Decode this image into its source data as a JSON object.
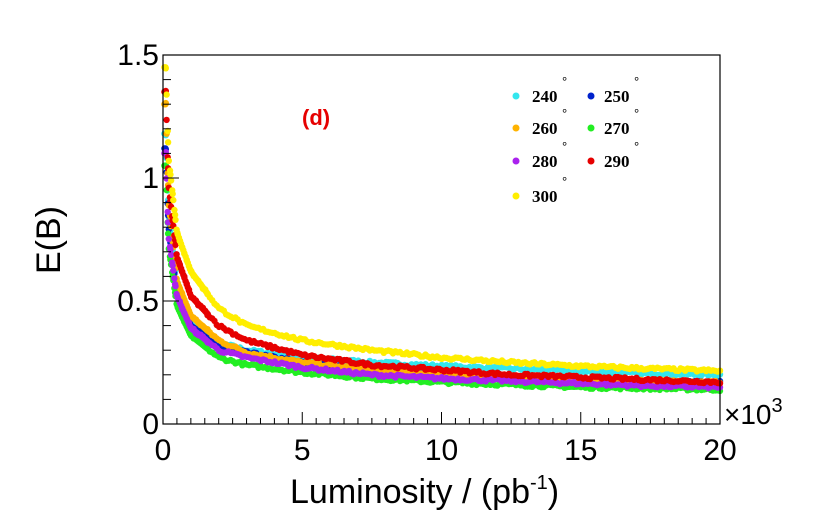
{
  "chart_data": {
    "type": "scatter",
    "title": "",
    "xlabel_main": "Luminosity / (pb",
    "xlabel_sup": "-1",
    "xlabel_end": ")",
    "ylabel": "E(B)",
    "x_multiplier": "×10",
    "x_multiplier_exp": "3",
    "xlim": [
      0,
      20
    ],
    "ylim": [
      0,
      1.5
    ],
    "x_ticks": [
      0,
      5,
      10,
      15,
      20
    ],
    "x_tick_labels": [
      "0",
      "5",
      "10",
      "15",
      "20"
    ],
    "y_ticks": [
      0,
      0.5,
      1,
      1.5
    ],
    "y_tick_labels": [
      "0",
      "0.5",
      "1",
      "1.5"
    ],
    "annotation": "(d)",
    "annotation_color": "#e60000",
    "degree_mark": "°",
    "legend_position": "top-right",
    "series": [
      {
        "name": "240",
        "color": "#33e6ee",
        "values": [
          [
            0.1,
            1.18
          ],
          [
            0.2,
            0.85
          ],
          [
            0.5,
            0.58
          ],
          [
            1,
            0.42
          ],
          [
            2,
            0.33
          ],
          [
            3,
            0.3
          ],
          [
            5,
            0.27
          ],
          [
            7.5,
            0.25
          ],
          [
            10,
            0.235
          ],
          [
            12.5,
            0.225
          ],
          [
            15,
            0.215
          ],
          [
            17.5,
            0.205
          ],
          [
            20,
            0.2
          ]
        ]
      },
      {
        "name": "250",
        "color": "#0022cc",
        "values": [
          [
            0.1,
            1.12
          ],
          [
            0.2,
            0.8
          ],
          [
            0.5,
            0.53
          ],
          [
            1,
            0.4
          ],
          [
            2,
            0.32
          ],
          [
            3,
            0.29
          ],
          [
            5,
            0.25
          ],
          [
            7.5,
            0.22
          ],
          [
            10,
            0.2
          ],
          [
            12.5,
            0.19
          ],
          [
            15,
            0.18
          ],
          [
            17.5,
            0.17
          ],
          [
            20,
            0.17
          ]
        ]
      },
      {
        "name": "260",
        "color": "#ffb300",
        "values": [
          [
            0.1,
            1.3
          ],
          [
            0.2,
            0.9
          ],
          [
            0.5,
            0.58
          ],
          [
            1,
            0.44
          ],
          [
            2,
            0.34
          ],
          [
            3,
            0.29
          ],
          [
            5,
            0.25
          ],
          [
            7.5,
            0.22
          ],
          [
            10,
            0.2
          ],
          [
            12.5,
            0.19
          ],
          [
            15,
            0.18
          ],
          [
            17.5,
            0.175
          ],
          [
            20,
            0.17
          ]
        ]
      },
      {
        "name": "270",
        "color": "#22ee22",
        "values": [
          [
            0.1,
            1.05
          ],
          [
            0.2,
            0.72
          ],
          [
            0.5,
            0.48
          ],
          [
            1,
            0.36
          ],
          [
            2,
            0.27
          ],
          [
            3,
            0.24
          ],
          [
            5,
            0.21
          ],
          [
            7.5,
            0.185
          ],
          [
            10,
            0.17
          ],
          [
            12.5,
            0.16
          ],
          [
            15,
            0.15
          ],
          [
            17.5,
            0.145
          ],
          [
            20,
            0.14
          ]
        ]
      },
      {
        "name": "280",
        "color": "#aa22ee",
        "values": [
          [
            0.1,
            1.1
          ],
          [
            0.2,
            0.76
          ],
          [
            0.5,
            0.52
          ],
          [
            1,
            0.39
          ],
          [
            2,
            0.3
          ],
          [
            3,
            0.27
          ],
          [
            5,
            0.23
          ],
          [
            7.5,
            0.2
          ],
          [
            10,
            0.185
          ],
          [
            12.5,
            0.175
          ],
          [
            15,
            0.165
          ],
          [
            17.5,
            0.155
          ],
          [
            20,
            0.15
          ]
        ]
      },
      {
        "name": "290",
        "color": "#e60000",
        "values": [
          [
            0.1,
            1.35
          ],
          [
            0.2,
            0.97
          ],
          [
            0.5,
            0.68
          ],
          [
            1,
            0.52
          ],
          [
            2,
            0.4
          ],
          [
            3,
            0.34
          ],
          [
            5,
            0.28
          ],
          [
            7.5,
            0.24
          ],
          [
            10,
            0.22
          ],
          [
            12.5,
            0.2
          ],
          [
            15,
            0.19
          ],
          [
            17.5,
            0.18
          ],
          [
            20,
            0.17
          ]
        ]
      },
      {
        "name": "300",
        "color": "#ffee00",
        "values": [
          [
            0.1,
            1.45
          ],
          [
            0.2,
            1.08
          ],
          [
            0.5,
            0.78
          ],
          [
            1,
            0.62
          ],
          [
            2,
            0.47
          ],
          [
            3,
            0.4
          ],
          [
            5,
            0.34
          ],
          [
            7.5,
            0.3
          ],
          [
            10,
            0.27
          ],
          [
            12.5,
            0.25
          ],
          [
            15,
            0.235
          ],
          [
            17.5,
            0.225
          ],
          [
            20,
            0.215
          ]
        ]
      }
    ]
  }
}
